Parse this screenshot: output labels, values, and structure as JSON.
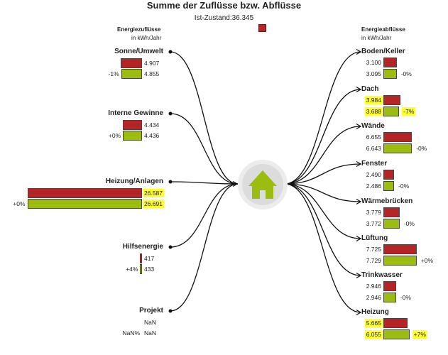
{
  "title": "Summe der Zuflüsse bzw. Abflüsse",
  "ist_label": "Ist-Zustand:36.345",
  "inflow_header": {
    "title": "Energiezuflüsse",
    "unit": "in kWh/Jahr"
  },
  "outflow_header": {
    "title": "Energieabflüsse",
    "unit": "in kWh/Jahr"
  },
  "colors": {
    "ist": "#b52525",
    "neu": "#9cbc0f",
    "highlight": "#ffff33"
  },
  "chart_data": {
    "type": "sankey",
    "center_icon": "house-icon",
    "inflows": [
      {
        "name": "Sonne/Umwelt",
        "ist": "4.907",
        "neu": "4.855",
        "ist_value": 4907,
        "neu_value": 4855,
        "change": "-1%",
        "highlight": false
      },
      {
        "name": "Interne Gewinne",
        "ist": "4.434",
        "neu": "4.436",
        "ist_value": 4434,
        "neu_value": 4436,
        "change": "+0%",
        "highlight": false
      },
      {
        "name": "Heizung/Anlagen",
        "ist": "26.587",
        "neu": "26.691",
        "ist_value": 26587,
        "neu_value": 26691,
        "change": "+0%",
        "highlight": true
      },
      {
        "name": "Hilfsenergie",
        "ist": "417",
        "neu": "433",
        "ist_value": 417,
        "neu_value": 433,
        "change": "+4%",
        "highlight": false
      },
      {
        "name": "Projekt",
        "ist": "NaN",
        "neu": "NaN",
        "ist_value": null,
        "neu_value": null,
        "change": "NaN%",
        "highlight": false
      }
    ],
    "outflows": [
      {
        "name": "Boden/Keller",
        "ist": "3.100",
        "neu": "3.095",
        "ist_value": 3100,
        "neu_value": 3095,
        "change": "-0%",
        "highlight": false
      },
      {
        "name": "Dach",
        "ist": "3.984",
        "neu": "3.688",
        "ist_value": 3984,
        "neu_value": 3688,
        "change": "-7%",
        "highlight": true
      },
      {
        "name": "Wände",
        "ist": "6.655",
        "neu": "6.643",
        "ist_value": 6655,
        "neu_value": 6643,
        "change": "-0%",
        "highlight": false
      },
      {
        "name": "Fenster",
        "ist": "2.490",
        "neu": "2.486",
        "ist_value": 2490,
        "neu_value": 2486,
        "change": "-0%",
        "highlight": false
      },
      {
        "name": "Wärmebrücken",
        "ist": "3.779",
        "neu": "3.772",
        "ist_value": 3779,
        "neu_value": 3772,
        "change": "-0%",
        "highlight": false
      },
      {
        "name": "Lüftung",
        "ist": "7.725",
        "neu": "7.729",
        "ist_value": 7725,
        "neu_value": 7729,
        "change": "+0%",
        "highlight": false
      },
      {
        "name": "Trinkwasser",
        "ist": "2.946",
        "neu": "2.946",
        "ist_value": 2946,
        "neu_value": 2946,
        "change": "-0%",
        "highlight": false
      },
      {
        "name": "Heizung",
        "ist": "5.665",
        "neu": "6.055",
        "ist_value": 5665,
        "neu_value": 6055,
        "change": "+7%",
        "highlight": true
      }
    ]
  }
}
